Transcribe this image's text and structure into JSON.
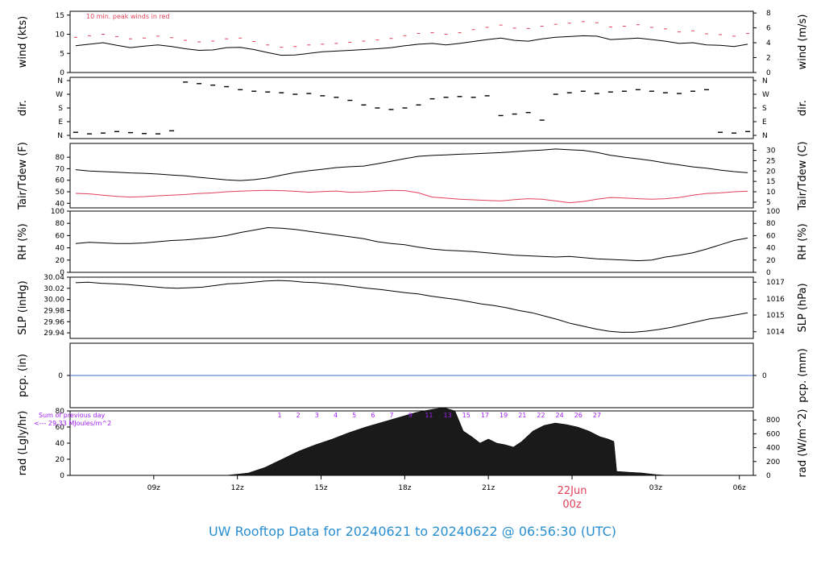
{
  "title": "UW Rooftop Data for 20240621  to  20240622 @ 06:56:30  (UTC)",
  "colors": {
    "line": "#000000",
    "accent_red": "#e0405a",
    "precip_blue": "#3a6fc8",
    "title_blue": "#2a8fd0",
    "solar_purple": "#a020f0"
  },
  "chart_data": [
    {
      "type": "line",
      "id": "wind",
      "ylabel_left": "wind (kts)",
      "ylabel_right": "wind (m/s)",
      "ylim": [
        0,
        16
      ],
      "left_ticks": [
        "0",
        "5",
        "10",
        "15"
      ],
      "left_tick_values": [
        0,
        5,
        10,
        15
      ],
      "right_ticks": [
        "0",
        "2",
        "4",
        "6",
        "8"
      ],
      "right_tick_values_kts": [
        0,
        3.89,
        7.78,
        11.66,
        15.55
      ],
      "annotation": "10 min. peak winds in red",
      "series": [
        {
          "values": [
            7.0,
            7.4,
            7.8,
            7.1,
            6.5,
            6.9,
            7.2,
            6.8,
            6.2,
            5.8,
            5.9,
            6.5,
            6.6,
            6.0,
            5.2,
            4.5,
            4.6,
            5.0,
            5.4,
            5.6,
            5.8,
            6.0,
            6.2,
            6.5,
            7.0,
            7.4,
            7.6,
            7.2,
            7.6,
            8.1,
            8.6,
            9.0,
            8.4,
            8.2,
            8.8,
            9.2,
            9.4,
            9.6,
            9.5,
            8.6,
            8.8,
            9.0,
            8.6,
            8.2,
            7.6,
            7.8,
            7.2,
            7.1,
            6.8,
            7.4
          ]
        },
        {
          "values": [
            9.2,
            9.6,
            10.0,
            9.4,
            8.8,
            9.0,
            9.5,
            9.1,
            8.4,
            8.0,
            8.2,
            8.8,
            9.0,
            8.1,
            7.2,
            6.6,
            6.8,
            7.2,
            7.4,
            7.6,
            7.9,
            8.2,
            8.5,
            8.9,
            9.6,
            10.2,
            10.4,
            10.0,
            10.4,
            11.2,
            11.8,
            12.4,
            11.6,
            11.5,
            12.1,
            12.6,
            12.9,
            13.3,
            13.0,
            11.9,
            12.1,
            12.5,
            11.8,
            11.4,
            10.6,
            10.9,
            10.1,
            9.9,
            9.5,
            10.2
          ]
        }
      ]
    },
    {
      "type": "scatter",
      "id": "direction",
      "ylabel": "dir.",
      "ticks": [
        "N",
        "E",
        "S",
        "W",
        "N"
      ],
      "tick_values": [
        0,
        90,
        180,
        270,
        360
      ],
      "series": [
        {
          "values": [
            20,
            10,
            15,
            25,
            18,
            12,
            10,
            30,
            350,
            340,
            330,
            320,
            300,
            290,
            285,
            280,
            270,
            275,
            260,
            250,
            230,
            200,
            180,
            170,
            180,
            200,
            240,
            250,
            255,
            250,
            260,
            130,
            140,
            150,
            100,
            270,
            280,
            290,
            275,
            285,
            290,
            300,
            290,
            280,
            275,
            290,
            300,
            20,
            15,
            25
          ]
        }
      ]
    },
    {
      "type": "line",
      "id": "temp",
      "ylabel_left": "Tair/Tdew (F)",
      "ylabel_right": "Tair/Tdew (C)",
      "ylim": [
        36,
        92
      ],
      "left_ticks": [
        "40",
        "50",
        "60",
        "70",
        "80"
      ],
      "left_tick_values": [
        40,
        50,
        60,
        70,
        80
      ],
      "right_ticks": [
        "5",
        "10",
        "15",
        "20",
        "25",
        "30"
      ],
      "right_tick_values_f": [
        41,
        50,
        59,
        68,
        77,
        86
      ],
      "series": [
        {
          "name": "Tair",
          "values": [
            69.2,
            68.0,
            67.5,
            67.0,
            66.4,
            66.0,
            65.4,
            64.5,
            63.8,
            62.5,
            61.5,
            60.3,
            59.7,
            60.5,
            62.0,
            64.4,
            66.7,
            68.3,
            69.5,
            71.0,
            71.8,
            72.3,
            74.3,
            76.5,
            78.8,
            80.8,
            81.6,
            82.0,
            82.6,
            83.0,
            83.5,
            84.0,
            84.8,
            85.6,
            86.2,
            87.2,
            86.5,
            86.0,
            84.2,
            81.7,
            80.0,
            78.6,
            77.0,
            75.0,
            73.4,
            71.6,
            70.5,
            68.8,
            67.5,
            66.5
          ]
        },
        {
          "name": "Tdew",
          "values": [
            48.6,
            48.2,
            47.0,
            46.0,
            45.4,
            45.8,
            46.5,
            47.0,
            47.6,
            48.5,
            49.0,
            50.0,
            50.5,
            51.0,
            51.2,
            51.0,
            50.4,
            49.6,
            50.2,
            50.6,
            49.6,
            49.8,
            50.5,
            51.2,
            51.0,
            49.0,
            45.4,
            44.5,
            43.5,
            43.0,
            42.5,
            42.0,
            43.2,
            44.0,
            43.5,
            42.0,
            40.5,
            41.5,
            43.5,
            45.0,
            44.6,
            44.0,
            43.5,
            44.0,
            45.0,
            47.0,
            48.5,
            49.0,
            50.0,
            50.5
          ]
        }
      ]
    },
    {
      "type": "line",
      "id": "rh",
      "ylabel_left": "RH (%)",
      "ylabel_right": "RH (%)",
      "ylim": [
        0,
        100
      ],
      "left_ticks": [
        "0",
        "20",
        "40",
        "60",
        "80",
        "100"
      ],
      "left_tick_values": [
        0,
        20,
        40,
        60,
        80,
        100
      ],
      "right_ticks": [
        "0",
        "20",
        "40",
        "60",
        "80",
        "100"
      ],
      "series": [
        {
          "values": [
            47,
            49,
            48,
            47,
            47,
            48,
            50,
            52,
            53,
            55,
            57,
            60,
            65,
            69,
            73,
            72,
            70,
            67,
            64,
            61,
            58,
            55,
            50,
            47,
            45,
            41,
            38,
            36,
            35,
            34,
            32,
            30,
            28,
            27,
            26,
            25,
            26,
            24,
            22,
            21,
            20,
            19,
            20,
            25,
            28,
            32,
            38,
            45,
            52,
            56
          ]
        }
      ]
    },
    {
      "type": "line",
      "id": "slp",
      "ylabel_left": "SLP (inHg)",
      "ylabel_right": "SLP (hPa)",
      "ylim": [
        29.93,
        30.04
      ],
      "left_ticks": [
        "29.94",
        "29.96",
        "29.98",
        "30.00",
        "30.02",
        "30.04"
      ],
      "left_tick_values": [
        29.94,
        29.96,
        29.98,
        30.0,
        30.02,
        30.04
      ],
      "right_ticks": [
        "1014",
        "1015",
        "1016",
        "1017"
      ],
      "right_tick_values_inhg": [
        29.942,
        29.972,
        30.001,
        30.031
      ],
      "series": [
        {
          "values": [
            30.03,
            30.031,
            30.029,
            30.028,
            30.027,
            30.025,
            30.023,
            30.021,
            30.02,
            30.021,
            30.022,
            30.025,
            30.028,
            30.029,
            30.031,
            30.033,
            30.034,
            30.033,
            30.031,
            30.03,
            30.028,
            30.026,
            30.023,
            30.02,
            30.018,
            30.015,
            30.012,
            30.01,
            30.006,
            30.003,
            30.0,
            29.996,
            29.992,
            29.989,
            29.985,
            29.98,
            29.976,
            29.97,
            29.964,
            29.957,
            29.952,
            29.947,
            29.943,
            29.941,
            29.941,
            29.943,
            29.946,
            29.95,
            29.955,
            29.96,
            29.965,
            29.968,
            29.972,
            29.976
          ]
        }
      ]
    },
    {
      "type": "line",
      "id": "precip",
      "ylabel_left": "pcp. (in)",
      "ylabel_right": "pcp. (mm)",
      "ylim": [
        -1,
        1
      ],
      "left_ticks": [
        "0"
      ],
      "right_ticks": [
        "0"
      ],
      "series": [
        {
          "values": [
            0,
            0
          ]
        }
      ]
    },
    {
      "type": "area",
      "id": "radiation",
      "ylabel_left": "rad (Lgly/hr)",
      "ylabel_right": "rad (W/m^2)",
      "ylim": [
        0,
        80
      ],
      "left_ticks": [
        "0",
        "20",
        "40",
        "60",
        "80"
      ],
      "left_tick_values": [
        0,
        20,
        40,
        60,
        80
      ],
      "right_ticks": [
        "0",
        "200",
        "400",
        "600",
        "800"
      ],
      "right_tick_values_lgly": [
        0,
        17.2,
        34.4,
        51.6,
        68.8
      ],
      "annotation_line1": "Sum of previous day",
      "annotation_line2": "<--- 29.33 MJoules/m^2",
      "hour_marks": [
        "1",
        "2",
        "3",
        "4",
        "5",
        "6",
        "7",
        "9",
        "11",
        "13",
        "15",
        "17",
        "19",
        "21",
        "22",
        "24",
        "26",
        "27"
      ],
      "series": [
        {
          "x": [
            11.6,
            12.4,
            13.0,
            13.6,
            14.2,
            14.8,
            15.4,
            16.0,
            16.6,
            17.2,
            17.8,
            18.4,
            19.0,
            19.4,
            19.8,
            20.1,
            20.4,
            20.7,
            21.0,
            21.3,
            21.6,
            21.9,
            22.2,
            22.6,
            23.0,
            23.4,
            23.8,
            24.2,
            24.6,
            25.0,
            25.3,
            25.5,
            25.6,
            26.0,
            26.5,
            27.0,
            27.4,
            28.0
          ],
          "values": [
            0,
            3,
            10,
            20,
            30,
            38,
            45,
            53,
            60,
            66,
            72,
            78,
            82,
            84,
            80,
            55,
            48,
            40,
            45,
            40,
            38,
            35,
            42,
            55,
            62,
            65,
            63,
            60,
            55,
            48,
            45,
            42,
            5,
            4,
            3,
            1,
            0,
            0
          ]
        }
      ]
    }
  ],
  "x_axis": {
    "range_hours": [
      6,
      30.5
    ],
    "ticks": [
      "09z",
      "12z",
      "15z",
      "18z",
      "21z",
      "03z",
      "06z"
    ],
    "tick_hours": [
      9,
      12,
      15,
      18,
      21,
      27,
      30
    ],
    "date_label": "22Jun",
    "date_label_hour": 24,
    "date_sublabel": "00z"
  }
}
